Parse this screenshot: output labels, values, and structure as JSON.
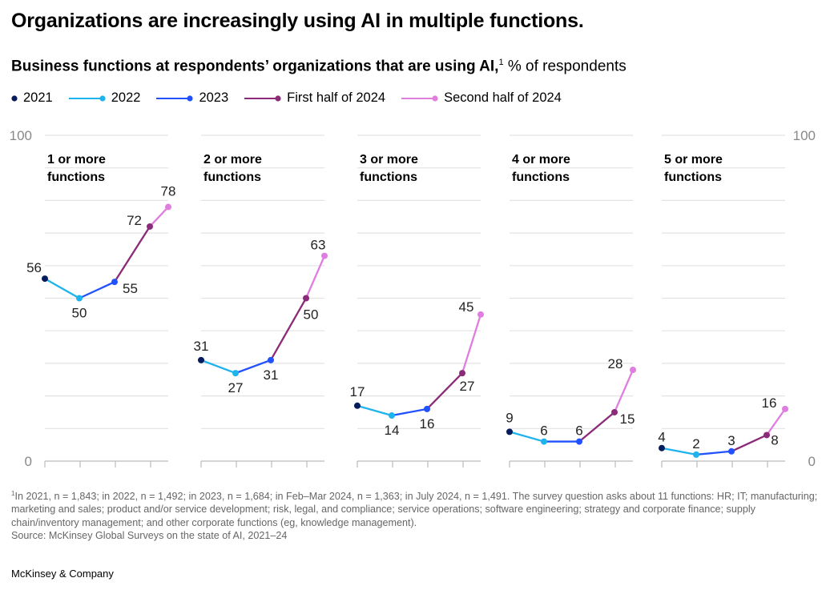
{
  "title": "Organizations are increasingly using AI in multiple functions.",
  "subtitle": {
    "bold": "Business functions at respondents’ organizations that are using AI,",
    "footnote_mark": "1",
    "rest": " % of respondents"
  },
  "legend": [
    {
      "label": "2021",
      "color": "#051c5c",
      "line": false
    },
    {
      "label": "2022",
      "color": "#1fb3ee",
      "line": true
    },
    {
      "label": "2023",
      "color": "#2251ff",
      "line": true
    },
    {
      "label": "First half of 2024",
      "color": "#8b2a78",
      "line": true
    },
    {
      "label": "Second half of 2024",
      "color": "#e07ee0",
      "line": true
    }
  ],
  "chart_data": {
    "type": "line",
    "ylim": [
      0,
      100
    ],
    "y_ticks": [
      "0",
      "100"
    ],
    "grid": true,
    "legend_position": "top-left",
    "x": [
      "2021",
      "2022",
      "2023",
      "First half of 2024",
      "Second half of 2024"
    ],
    "panels": [
      {
        "title": "1 or more functions",
        "values": [
          56,
          50,
          55,
          72,
          78
        ]
      },
      {
        "title": "2 or more functions",
        "values": [
          31,
          27,
          31,
          50,
          63
        ]
      },
      {
        "title": "3 or more functions",
        "values": [
          17,
          14,
          16,
          27,
          45
        ]
      },
      {
        "title": "4 or more functions",
        "values": [
          9,
          6,
          6,
          15,
          28
        ]
      },
      {
        "title": "5 or more functions",
        "values": [
          4,
          2,
          3,
          8,
          16
        ]
      }
    ]
  },
  "footnote": {
    "mark": "1",
    "text": "In 2021, n = 1,843; in 2022, n = 1,492; in 2023, n = 1,684; in Feb–Mar 2024, n = 1,363; in July 2024, n = 1,491. The survey question asks about 11 functions: HR; IT; manufacturing; marketing and sales; product and/or service development; risk, legal, and compliance; service operations; software engineering; strategy and corporate finance; supply chain/inventory management; and other corporate functions (eg, knowledge management).",
    "source": "Source: McKinsey Global Surveys on the state of AI, 2021–24"
  },
  "brand": "McKinsey & Company"
}
